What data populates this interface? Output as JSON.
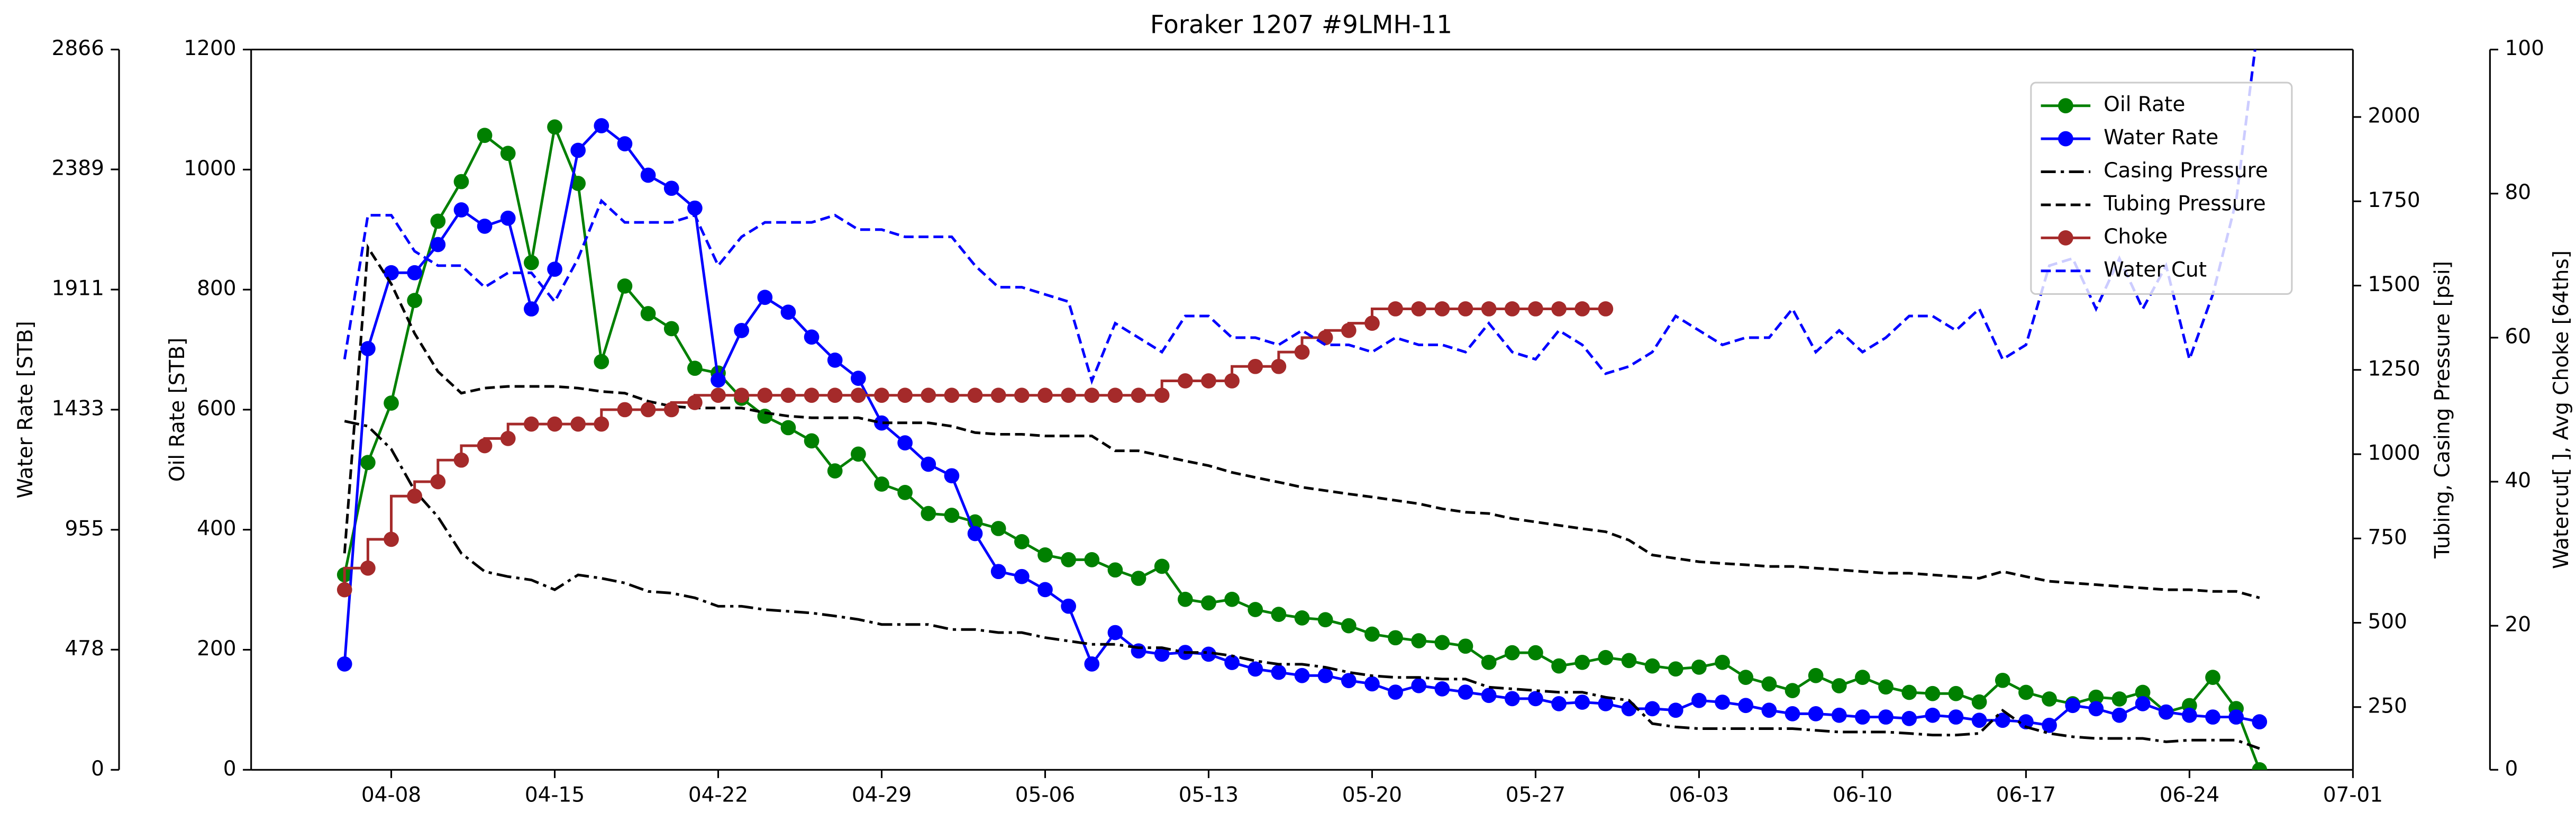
{
  "chart_data": {
    "type": "line",
    "title": "Foraker 1207 #9LMH-11",
    "ylabel": "Oil Rate [STB]",
    "y2label": "Water Rate [STB]",
    "y3label": "Tubing, Casing Pressure [psi]",
    "y4label": "Watercut[ ], Avg Choke [64ths]",
    "x": [
      "04-06",
      "04-07",
      "04-08",
      "04-09",
      "04-10",
      "04-11",
      "04-12",
      "04-13",
      "04-14",
      "04-15",
      "04-16",
      "04-17",
      "04-18",
      "04-19",
      "04-20",
      "04-21",
      "04-22",
      "04-23",
      "04-24",
      "04-25",
      "04-26",
      "04-27",
      "04-28",
      "04-29",
      "04-30",
      "05-01",
      "05-02",
      "05-03",
      "05-04",
      "05-05",
      "05-06",
      "05-07",
      "05-08",
      "05-09",
      "05-10",
      "05-11",
      "05-12",
      "05-13",
      "05-14",
      "05-15",
      "05-16",
      "05-17",
      "05-18",
      "05-19",
      "05-20",
      "05-21",
      "05-22",
      "05-23",
      "05-24",
      "05-25",
      "05-26",
      "05-27",
      "05-28",
      "05-29",
      "05-30",
      "05-31",
      "06-01",
      "06-02",
      "06-03",
      "06-04",
      "06-05",
      "06-06",
      "06-07",
      "06-08",
      "06-09",
      "06-10",
      "06-11",
      "06-12",
      "06-13",
      "06-14",
      "06-15",
      "06-16",
      "06-17",
      "06-18",
      "06-19",
      "06-20",
      "06-21",
      "06-22",
      "06-23",
      "06-24",
      "06-25",
      "06-26",
      "06-27"
    ],
    "xlim": [
      "04-02",
      "07-01"
    ],
    "xticks": [
      "04-08",
      "04-15",
      "04-22",
      "04-29",
      "05-06",
      "05-13",
      "05-20",
      "05-27",
      "06-03",
      "06-10",
      "06-17",
      "06-24",
      "07-01"
    ],
    "ylim": [
      0,
      1200
    ],
    "yticks": [
      0,
      200,
      400,
      600,
      800,
      1000,
      1200
    ],
    "y2lim": [
      0,
      2866
    ],
    "y2ticks": [
      0,
      478,
      955,
      1433,
      1911,
      2389,
      2866
    ],
    "y3lim": [
      64,
      2200
    ],
    "y3ticks": [
      250,
      500,
      750,
      1000,
      1250,
      1500,
      1750,
      2000
    ],
    "y4lim": [
      0,
      100
    ],
    "y4ticks": [
      0,
      20,
      40,
      60,
      80,
      100
    ],
    "legend": "upper right",
    "series": [
      {
        "name": "Oil Rate",
        "color": "#008000",
        "axis": "y",
        "marker": "o",
        "linestyle": "solid",
        "values": [
          325,
          512,
          611,
          782,
          914,
          980,
          1057,
          1027,
          845,
          1071,
          977,
          680,
          806,
          760,
          735,
          669,
          661,
          619,
          589,
          570,
          548,
          498,
          526,
          476,
          462,
          427,
          424,
          413,
          402,
          380,
          358,
          350,
          350,
          333,
          319,
          339,
          284,
          278,
          284,
          267,
          259,
          253,
          250,
          240,
          226,
          220,
          215,
          212,
          206,
          179,
          195,
          195,
          173,
          179,
          187,
          182,
          173,
          168,
          171,
          179,
          154,
          143,
          132,
          157,
          140,
          154,
          138,
          129,
          127,
          127,
          113,
          149,
          129,
          118,
          110,
          121,
          118,
          129,
          96,
          107,
          154,
          102,
          0
        ]
      },
      {
        "name": "Water Rate",
        "color": "#0000ff",
        "axis": "y2",
        "marker": "o",
        "linestyle": "solid",
        "values": [
          421,
          1676,
          1978,
          1978,
          2090,
          2228,
          2163,
          2195,
          1834,
          1992,
          2465,
          2563,
          2491,
          2366,
          2314,
          2235,
          1551,
          1748,
          1880,
          1821,
          1722,
          1630,
          1558,
          1380,
          1301,
          1216,
          1170,
          940,
          789,
          769,
          717,
          651,
          421,
          546,
          473,
          460,
          467,
          460,
          427,
          401,
          388,
          375,
          375,
          355,
          342,
          309,
          335,
          322,
          309,
          296,
          283,
          283,
          263,
          269,
          263,
          243,
          243,
          237,
          276,
          269,
          256,
          237,
          223,
          223,
          217,
          210,
          210,
          204,
          217,
          210,
          197,
          197,
          191,
          177,
          256,
          243,
          217,
          263,
          230,
          217,
          210,
          210,
          191
        ]
      },
      {
        "name": "Casing Pressure",
        "color": "#000000",
        "axis": "y3",
        "linestyle": "dashdot",
        "values": [
          1098,
          1083,
          1015,
          892,
          814,
          706,
          652,
          637,
          627,
          598,
          642,
          632,
          618,
          593,
          588,
          574,
          549,
          549,
          539,
          534,
          529,
          520,
          510,
          495,
          495,
          495,
          480,
          480,
          471,
          471,
          456,
          446,
          436,
          436,
          426,
          426,
          412,
          412,
          402,
          387,
          377,
          377,
          368,
          353,
          343,
          338,
          338,
          333,
          333,
          309,
          304,
          299,
          294,
          294,
          279,
          270,
          201,
          191,
          186,
          186,
          186,
          186,
          186,
          181,
          176,
          176,
          176,
          172,
          167,
          167,
          172,
          240,
          191,
          172,
          162,
          157,
          157,
          157,
          147,
          152,
          152,
          152,
          127
        ]
      },
      {
        "name": "Tubing Pressure",
        "color": "#000000",
        "axis": "y3",
        "linestyle": "dashed",
        "values": [
          706,
          1613,
          1505,
          1358,
          1245,
          1181,
          1196,
          1201,
          1201,
          1201,
          1196,
          1186,
          1181,
          1157,
          1142,
          1137,
          1137,
          1137,
          1123,
          1113,
          1108,
          1108,
          1108,
          1093,
          1093,
          1093,
          1083,
          1064,
          1059,
          1059,
          1054,
          1054,
          1054,
          1010,
          1010,
          995,
          980,
          966,
          946,
          931,
          917,
          902,
          892,
          882,
          873,
          863,
          853,
          838,
          828,
          824,
          809,
          799,
          789,
          779,
          770,
          745,
          701,
          691,
          681,
          676,
          672,
          667,
          667,
          662,
          657,
          652,
          647,
          647,
          642,
          637,
          632,
          652,
          637,
          623,
          618,
          613,
          608,
          603,
          598,
          598,
          593,
          593,
          574
        ]
      },
      {
        "name": "Choke",
        "color": "#a52a2a",
        "axis": "y4",
        "marker": "o",
        "linestyle": "solid",
        "drawstyle": "steps-pre",
        "values": [
          25,
          28,
          32,
          38,
          40,
          43,
          45,
          46,
          48,
          48,
          48,
          48,
          50,
          50,
          50,
          51,
          52,
          52,
          52,
          52,
          52,
          52,
          52,
          52,
          52,
          52,
          52,
          52,
          52,
          52,
          52,
          52,
          52,
          52,
          52,
          52,
          54,
          54,
          54,
          56,
          56,
          58,
          60,
          61,
          62,
          64,
          64,
          64,
          64,
          64,
          64,
          64,
          64,
          64,
          64,
          null,
          null,
          null,
          null,
          null,
          null,
          null,
          null,
          null,
          null,
          null,
          null,
          null,
          null,
          null,
          null,
          null,
          null,
          null,
          null,
          null,
          null,
          null,
          null,
          null,
          null,
          null,
          null
        ]
      },
      {
        "name": "Water Cut",
        "color": "#0000ff",
        "axis": "y4",
        "linestyle": "dashed",
        "values": [
          57,
          77,
          77,
          72,
          70,
          70,
          67,
          69,
          69,
          65,
          71,
          79,
          76,
          76,
          76,
          77,
          70,
          74,
          76,
          76,
          76,
          77,
          75,
          75,
          74,
          74,
          74,
          70,
          67,
          67,
          66,
          65,
          54,
          62,
          60,
          58,
          63,
          63,
          60,
          60,
          59,
          61,
          59,
          59,
          58,
          60,
          59,
          59,
          58,
          62,
          58,
          57,
          61,
          59,
          55,
          56,
          58,
          63,
          61,
          59,
          60,
          60,
          64,
          58,
          61,
          58,
          60,
          63,
          63,
          61,
          64,
          57,
          59,
          70,
          71,
          64,
          71,
          64,
          70,
          57,
          66,
          79,
          105
        ]
      }
    ]
  }
}
